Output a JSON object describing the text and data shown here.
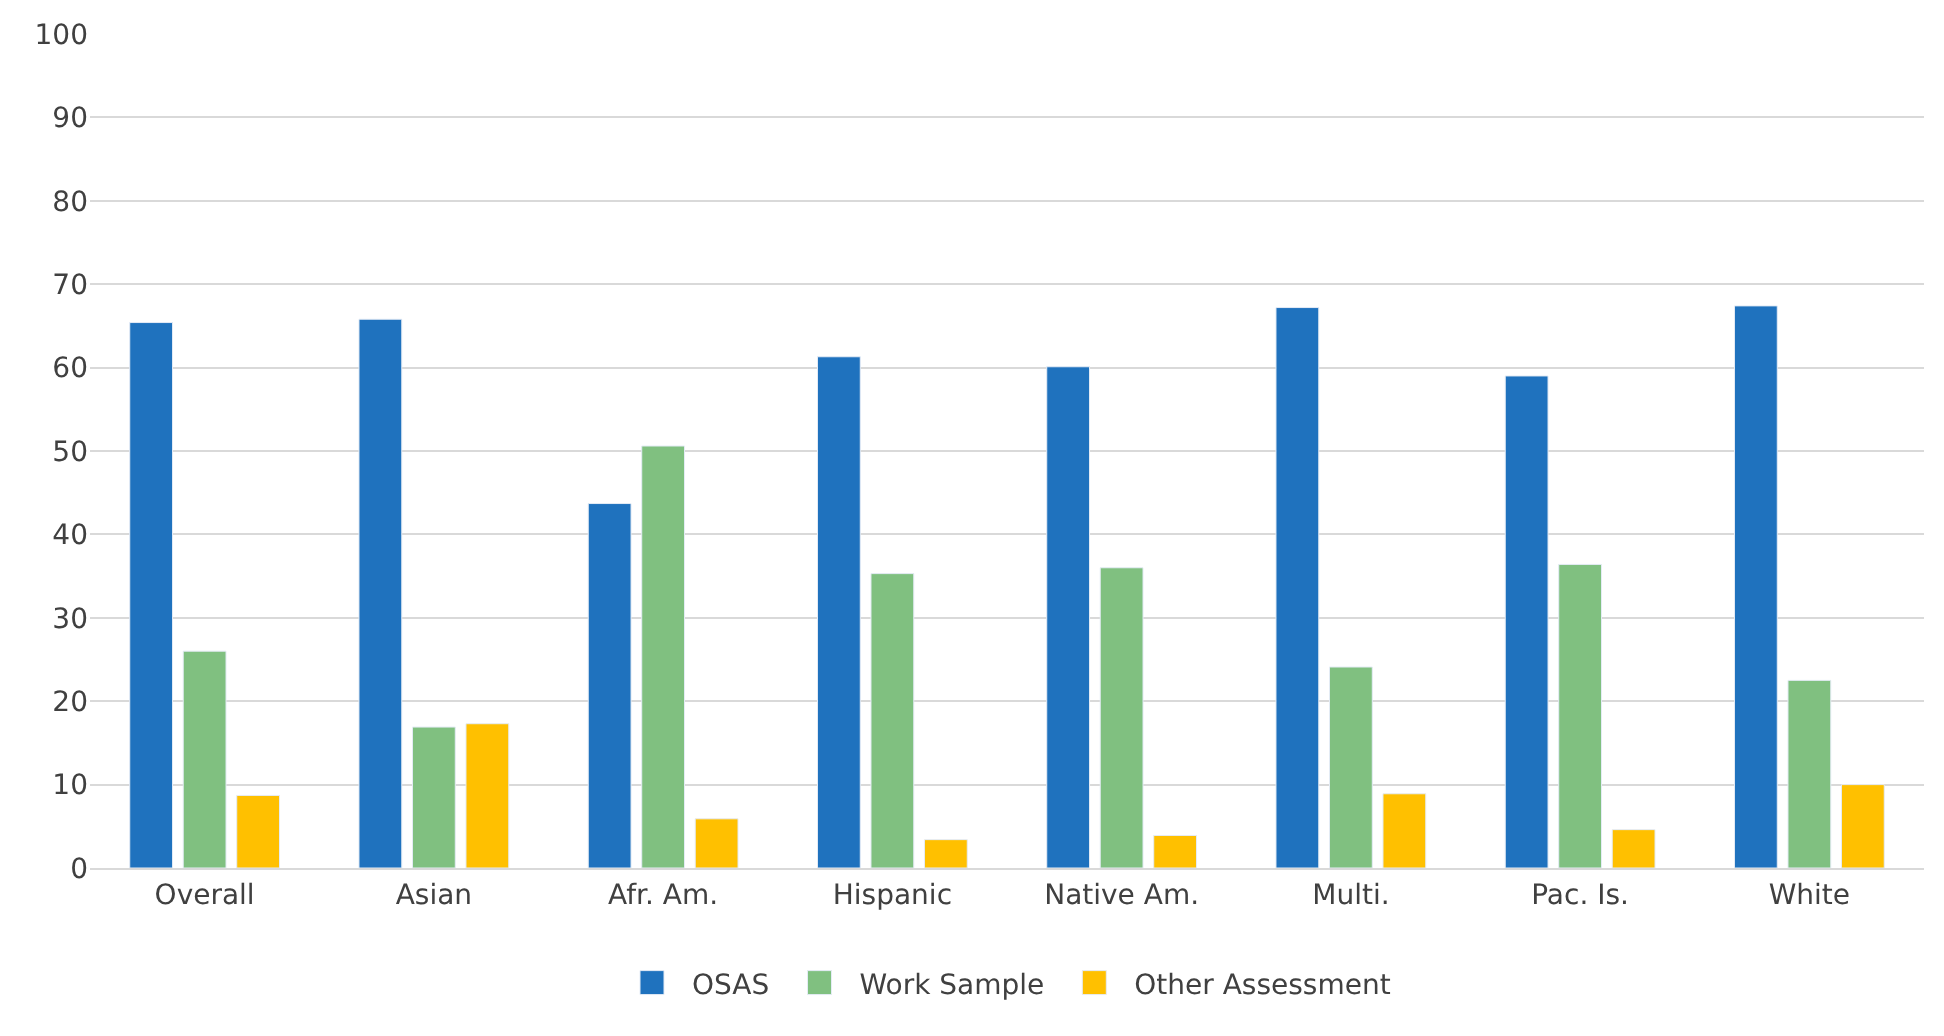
{
  "chart_data": {
    "type": "bar",
    "categories": [
      "Overall",
      "Asian",
      "Afr. Am.",
      "Hispanic",
      "Native Am.",
      "Multi.",
      "Pac. Is.",
      "White"
    ],
    "series": [
      {
        "name": "OSAS",
        "color": "#1f72be",
        "values": [
          65.4,
          65.8,
          43.7,
          61.3,
          60.1,
          67.2,
          59.0,
          67.4
        ]
      },
      {
        "name": "Work Sample",
        "color": "#80c080",
        "values": [
          26.0,
          16.9,
          50.6,
          35.3,
          36.0,
          24.1,
          36.4,
          22.5
        ]
      },
      {
        "name": "Other Assessment",
        "color": "#ffc000",
        "values": [
          8.7,
          17.3,
          5.9,
          3.4,
          3.9,
          8.9,
          4.6,
          10.0
        ]
      }
    ],
    "ylim": [
      0,
      100
    ],
    "yticks": [
      0,
      10,
      20,
      30,
      40,
      50,
      60,
      70,
      80,
      90,
      100
    ],
    "grid": "y",
    "legend": "bottom"
  }
}
